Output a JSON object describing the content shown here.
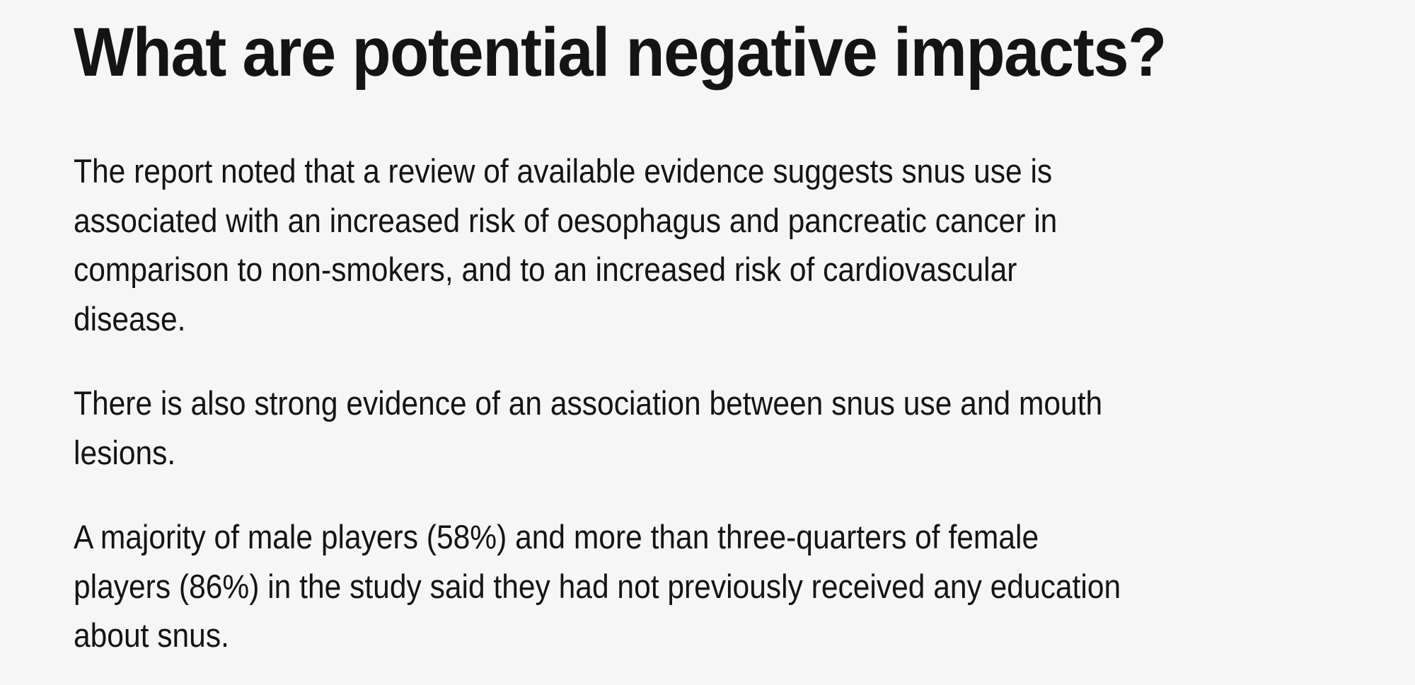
{
  "article": {
    "heading": "What are potential negative impacts?",
    "paragraphs": [
      {
        "lines": [
          "The report noted that a review of available evidence suggests snus use is",
          "associated with an increased risk of oesophagus and pancreatic cancer in",
          "comparison to non-smokers, and to an increased risk of cardiovascular",
          "disease."
        ]
      },
      {
        "lines": [
          "There is also strong evidence of an association between snus use and mouth",
          "lesions."
        ]
      },
      {
        "lines": [
          "A majority of male players (58%) and more than three-quarters of female",
          "players (86%) in the study said they had not previously received any education",
          "about snus."
        ]
      }
    ]
  },
  "colors": {
    "background": "#f6f6f6",
    "text": "#141414"
  }
}
